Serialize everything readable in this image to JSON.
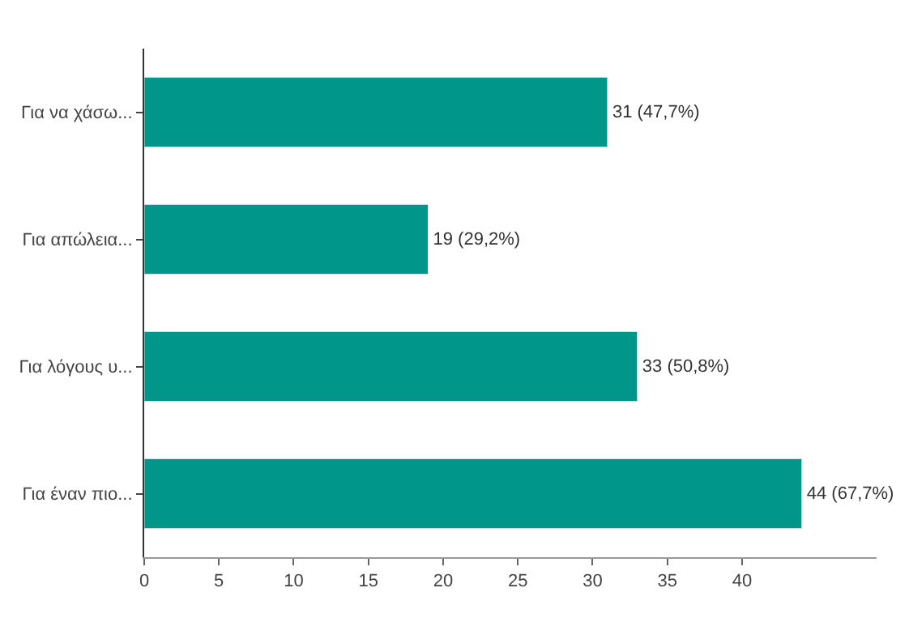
{
  "chart_data": {
    "type": "bar",
    "orientation": "horizontal",
    "categories": [
      "Για να χάσω...",
      "Για απώλεια...",
      "Για λόγους υ...",
      "Για έναν πιο..."
    ],
    "values": [
      31,
      19,
      33,
      44
    ],
    "value_labels": [
      "31 (47,7%)",
      "19 (29,2%)",
      "33 (50,8%)",
      "44 (67,7%)"
    ],
    "color": "#00968a",
    "xlim": [
      0,
      49
    ],
    "xticks": [
      0,
      5,
      10,
      15,
      20,
      25,
      30,
      35,
      40
    ]
  }
}
